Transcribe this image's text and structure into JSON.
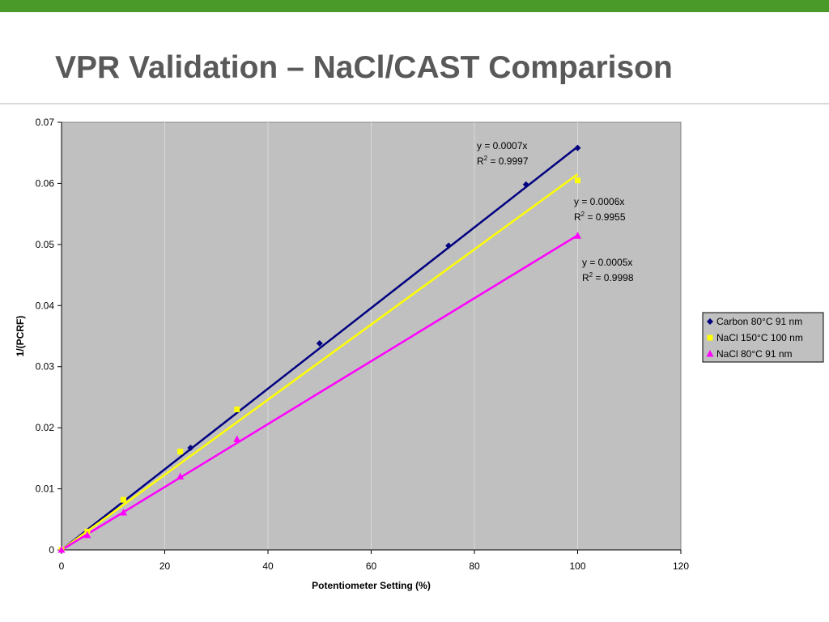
{
  "slide": {
    "title": "VPR Validation – NaCl/CAST Comparison",
    "accent_color": "#4a9a2a",
    "title_color": "#595959"
  },
  "chart_data": {
    "type": "scatter",
    "xlabel": "Potentiometer Setting (%)",
    "ylabel": "1/(PCRF)",
    "xlim": [
      0,
      120
    ],
    "ylim": [
      0,
      0.07
    ],
    "x_ticks": [
      "0",
      "20",
      "40",
      "60",
      "80",
      "100",
      "120"
    ],
    "y_ticks": [
      "0",
      "0.01",
      "0.02",
      "0.03",
      "0.04",
      "0.05",
      "0.06",
      "0.07"
    ],
    "grid": "vertical",
    "plot_background": "#c0c0c0",
    "legend_position": "right",
    "series": [
      {
        "name": "Carbon 80°C 91 nm",
        "marker": "diamond",
        "color": "#000080",
        "points": [
          [
            0,
            0
          ],
          [
            25,
            0.0167
          ],
          [
            50,
            0.0338
          ],
          [
            75,
            0.0498
          ],
          [
            90,
            0.0598
          ],
          [
            100,
            0.0658
          ]
        ],
        "trendline": {
          "slope": 0.00066,
          "equation": "y = 0.0007x",
          "r2_value": "= 0.9997"
        }
      },
      {
        "name": "NaCl 150°C 100 nm",
        "marker": "square",
        "color": "#ffff00",
        "points": [
          [
            0,
            0
          ],
          [
            5,
            0.003
          ],
          [
            12,
            0.0082
          ],
          [
            23,
            0.0161
          ],
          [
            34,
            0.023
          ],
          [
            100,
            0.0605
          ]
        ],
        "trendline": {
          "slope": 0.000615,
          "equation": "y = 0.0006x",
          "r2_value": "= 0.9955"
        }
      },
      {
        "name": "NaCl 80°C 91 nm",
        "marker": "triangle",
        "color": "#ff00ff",
        "points": [
          [
            0,
            0
          ],
          [
            5,
            0.0024
          ],
          [
            12,
            0.0061
          ],
          [
            23,
            0.012
          ],
          [
            34,
            0.0181
          ],
          [
            100,
            0.0514
          ]
        ],
        "trendline": {
          "slope": 0.000515,
          "equation": "y = 0.0005x",
          "r2_value": "= 0.9998"
        }
      }
    ]
  }
}
